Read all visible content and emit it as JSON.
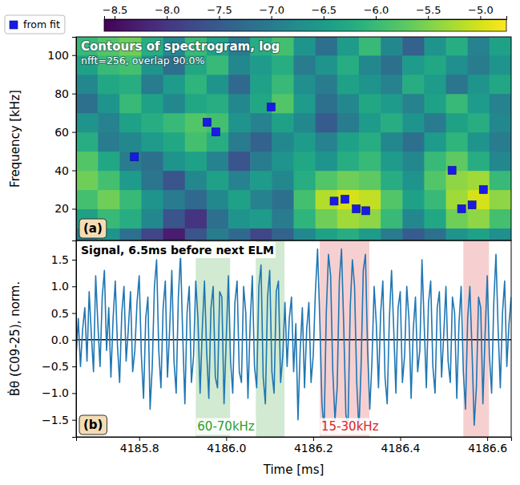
{
  "chart_data": [
    {
      "type": "heatmap",
      "panel_label": "(a)",
      "title": "Contours of spectrogram, log",
      "subtitle": "nfft=256, overlap 90.0%",
      "ylabel": "Frequency [kHz]",
      "xlim": [
        4185.655,
        4186.655
      ],
      "ylim": [
        3.5,
        109.5
      ],
      "yticks": [
        20,
        40,
        60,
        80,
        100
      ],
      "tick_labels": "y",
      "legend": "upper left",
      "heatmap": {
        "x": [
          4185.68,
          4185.73,
          4185.78,
          4185.83,
          4185.88,
          4185.93,
          4185.98,
          4186.03,
          4186.08,
          4186.13,
          4186.18,
          4186.23,
          4186.28,
          4186.33,
          4186.38,
          4186.43,
          4186.48,
          4186.53,
          4186.58,
          4186.63
        ],
        "y": [
          5,
          15,
          25,
          35,
          45,
          55,
          65,
          75,
          85,
          95,
          105
        ],
        "z": [
          [
            -7.0,
            -6.6,
            -7.2,
            -7.8,
            -8.3,
            -7.6,
            -7.0,
            -7.3,
            -7.8,
            -7.4,
            -6.8,
            -6.4,
            -6.2,
            -6.5,
            -7.0,
            -7.5,
            -7.2,
            -6.6,
            -6.4,
            -6.7
          ],
          [
            -6.4,
            -6.0,
            -6.2,
            -6.8,
            -7.6,
            -8.0,
            -7.2,
            -6.6,
            -6.5,
            -7.0,
            -6.1,
            -5.6,
            -5.3,
            -5.4,
            -6.0,
            -6.8,
            -6.3,
            -5.6,
            -5.4,
            -5.9
          ],
          [
            -5.9,
            -5.6,
            -6.0,
            -6.6,
            -7.0,
            -7.3,
            -6.8,
            -6.4,
            -6.9,
            -7.2,
            -5.9,
            -5.2,
            -5.0,
            -5.1,
            -5.8,
            -6.4,
            -6.0,
            -5.3,
            -5.0,
            -5.4
          ],
          [
            -5.6,
            -5.9,
            -6.5,
            -7.1,
            -7.6,
            -6.8,
            -6.4,
            -6.9,
            -6.5,
            -6.8,
            -6.2,
            -5.8,
            -5.6,
            -5.7,
            -6.2,
            -6.6,
            -5.8,
            -5.4,
            -5.3,
            -6.0
          ],
          [
            -5.8,
            -6.3,
            -7.0,
            -7.2,
            -6.6,
            -6.4,
            -6.9,
            -7.6,
            -7.0,
            -6.6,
            -6.3,
            -6.6,
            -6.2,
            -6.0,
            -6.5,
            -6.8,
            -6.0,
            -5.7,
            -6.2,
            -6.8
          ],
          [
            -6.2,
            -7.0,
            -6.8,
            -6.5,
            -6.3,
            -5.9,
            -6.2,
            -7.0,
            -7.4,
            -6.8,
            -6.5,
            -6.9,
            -6.4,
            -6.2,
            -6.8,
            -7.2,
            -6.5,
            -6.1,
            -6.6,
            -7.0
          ],
          [
            -6.6,
            -6.9,
            -6.4,
            -6.2,
            -6.0,
            -5.8,
            -5.9,
            -6.6,
            -6.9,
            -6.4,
            -6.8,
            -7.5,
            -7.0,
            -6.5,
            -6.2,
            -6.6,
            -7.0,
            -6.4,
            -6.2,
            -6.8
          ],
          [
            -7.2,
            -6.6,
            -6.0,
            -6.4,
            -6.8,
            -6.3,
            -6.2,
            -6.8,
            -6.3,
            -5.8,
            -6.5,
            -7.2,
            -6.8,
            -6.3,
            -6.5,
            -6.9,
            -6.4,
            -6.0,
            -6.5,
            -6.9
          ],
          [
            -6.8,
            -6.3,
            -6.2,
            -7.0,
            -6.5,
            -6.1,
            -6.6,
            -7.3,
            -6.4,
            -6.0,
            -6.7,
            -7.0,
            -6.4,
            -6.6,
            -6.9,
            -6.2,
            -6.5,
            -7.1,
            -6.6,
            -6.3
          ],
          [
            -6.4,
            -6.0,
            -5.9,
            -6.6,
            -7.2,
            -6.3,
            -6.0,
            -6.8,
            -6.5,
            -6.2,
            -7.0,
            -6.6,
            -6.2,
            -6.8,
            -7.2,
            -6.5,
            -6.3,
            -6.7,
            -7.0,
            -6.6
          ],
          [
            -6.0,
            -5.8,
            -5.6,
            -6.2,
            -6.8,
            -6.0,
            -6.4,
            -7.0,
            -6.2,
            -5.9,
            -6.6,
            -7.2,
            -6.5,
            -6.0,
            -6.8,
            -7.4,
            -6.6,
            -6.2,
            -6.9,
            -6.4
          ]
        ]
      },
      "clim": [
        -8.6,
        -4.75
      ],
      "cticks": [
        {
          "value": -8.5,
          "label": "−8.5"
        },
        {
          "value": -8.0,
          "label": "−8.0"
        },
        {
          "value": -7.5,
          "label": "−7.5"
        },
        {
          "value": -7.0,
          "label": "−7.0"
        },
        {
          "value": -6.5,
          "label": "−6.5"
        },
        {
          "value": -6.0,
          "label": "−6.0"
        },
        {
          "value": -5.5,
          "label": "−5.5"
        },
        {
          "value": -5.0,
          "label": "−5.0"
        }
      ],
      "series": [
        {
          "name": "from fit",
          "type": "scatter",
          "marker": "square",
          "color": "#1a1ae6",
          "x": [
            4185.789,
            4185.956,
            4185.976,
            4186.103,
            4186.248,
            4186.273,
            4186.299,
            4186.321,
            4186.519,
            4186.541,
            4186.565,
            4186.591
          ],
          "values": [
            47,
            65,
            60,
            73,
            24,
            25,
            20,
            19,
            40,
            20,
            22,
            30
          ]
        }
      ]
    },
    {
      "type": "line",
      "panel_label": "(b)",
      "title": "Signal, 6.5ms before next ELM",
      "xlabel": "Time [ms]",
      "ylabel": "Ḃθ (C09-25), norm.",
      "xlim": [
        4185.655,
        4186.655
      ],
      "ylim": [
        -1.82,
        1.86
      ],
      "xticks": [
        4185.8,
        {
          "value": 4186,
          "label": "4186.0"
        },
        4186.2,
        4186.4,
        4186.6
      ],
      "yticks": [
        {
          "value": -1.5,
          "label": "−1.5"
        },
        {
          "value": -1,
          "label": "−1.0"
        },
        {
          "value": -0.5,
          "label": "−0.5"
        },
        {
          "value": 0,
          "label": "0.0"
        },
        0.5,
        {
          "value": 1,
          "label": "1.0"
        },
        1.5
      ],
      "hline": 0,
      "bands": [
        {
          "label": "60-70kHz",
          "color": "#2ca02c",
          "spans": [
            [
              4185.93,
              4186.009
            ],
            [
              4186.068,
              4186.134
            ]
          ]
        },
        {
          "label": "15-30kHz",
          "color": "#d62728",
          "spans": [
            [
              4186.215,
              4186.329
            ],
            [
              4186.545,
              4186.604
            ]
          ]
        }
      ],
      "x": [
        4185.655,
        4185.66,
        4185.665,
        4185.67,
        4185.675,
        4185.68,
        4185.685,
        4185.69,
        4185.695,
        4185.7,
        4185.705,
        4185.71,
        4185.715,
        4185.72,
        4185.725,
        4185.73,
        4185.735,
        4185.74,
        4185.745,
        4185.75,
        4185.755,
        4185.76,
        4185.765,
        4185.77,
        4185.775,
        4185.78,
        4185.785,
        4185.79,
        4185.795,
        4185.8,
        4185.805,
        4185.81,
        4185.815,
        4185.82,
        4185.825,
        4185.83,
        4185.835,
        4185.84,
        4185.845,
        4185.85,
        4185.855,
        4185.86,
        4185.865,
        4185.87,
        4185.875,
        4185.88,
        4185.885,
        4185.89,
        4185.895,
        4185.9,
        4185.905,
        4185.91,
        4185.915,
        4185.92,
        4185.925,
        4185.93,
        4185.935,
        4185.94,
        4185.945,
        4185.95,
        4185.955,
        4185.96,
        4185.965,
        4185.97,
        4185.975,
        4185.98,
        4185.985,
        4185.99,
        4185.995,
        4186.0,
        4186.005,
        4186.01,
        4186.015,
        4186.02,
        4186.025,
        4186.03,
        4186.035,
        4186.04,
        4186.045,
        4186.05,
        4186.055,
        4186.06,
        4186.065,
        4186.07,
        4186.075,
        4186.08,
        4186.085,
        4186.09,
        4186.095,
        4186.1,
        4186.105,
        4186.11,
        4186.115,
        4186.12,
        4186.125,
        4186.13,
        4186.135,
        4186.14,
        4186.145,
        4186.15,
        4186.155,
        4186.16,
        4186.165,
        4186.17,
        4186.175,
        4186.18,
        4186.185,
        4186.19,
        4186.195,
        4186.2,
        4186.205,
        4186.21,
        4186.215,
        4186.22,
        4186.225,
        4186.23,
        4186.235,
        4186.24,
        4186.245,
        4186.25,
        4186.255,
        4186.26,
        4186.265,
        4186.27,
        4186.275,
        4186.28,
        4186.285,
        4186.29,
        4186.295,
        4186.3,
        4186.305,
        4186.31,
        4186.315,
        4186.32,
        4186.325,
        4186.33,
        4186.335,
        4186.34,
        4186.345,
        4186.35,
        4186.355,
        4186.36,
        4186.365,
        4186.37,
        4186.375,
        4186.38,
        4186.385,
        4186.39,
        4186.395,
        4186.4,
        4186.405,
        4186.41,
        4186.415,
        4186.42,
        4186.425,
        4186.43,
        4186.435,
        4186.44,
        4186.445,
        4186.45,
        4186.455,
        4186.46,
        4186.465,
        4186.47,
        4186.475,
        4186.48,
        4186.485,
        4186.49,
        4186.495,
        4186.5,
        4186.505,
        4186.51,
        4186.515,
        4186.52,
        4186.525,
        4186.53,
        4186.535,
        4186.54,
        4186.545,
        4186.55,
        4186.555,
        4186.56,
        4186.565,
        4186.57,
        4186.575,
        4186.58,
        4186.585,
        4186.59,
        4186.595,
        4186.6,
        4186.605,
        4186.61,
        4186.615,
        4186.62,
        4186.625,
        4186.63,
        4186.635,
        4186.64,
        4186.645,
        4186.65,
        4186.655
      ],
      "series": [
        {
          "color": "#1f77b4",
          "values": [
            -0.3,
            0.4,
            -0.5,
            0.2,
            0.6,
            -0.4,
            0.9,
            0.1,
            -0.6,
            1.2,
            0.3,
            -0.5,
            0.8,
            1.3,
            -0.2,
            0.6,
            -0.7,
            0.4,
            1.1,
            -0.1,
            -0.8,
            0.5,
            1.0,
            -0.4,
            0.2,
            0.9,
            -0.6,
            -0.2,
            0.7,
            1.2,
            -0.3,
            -1.1,
            0.4,
            0.8,
            -1.3,
            -0.5,
            1.0,
            1.5,
            -0.2,
            -0.9,
            0.6,
            1.1,
            -0.7,
            0.2,
            1.3,
            -0.4,
            -1.0,
            0.8,
            1.6,
            0.1,
            -1.2,
            0.5,
            1.0,
            -0.8,
            -0.3,
            1.1,
            0.4,
            -1.0,
            0.2,
            1.1,
            -0.2,
            -1.1,
            0.6,
            1.0,
            -0.7,
            -0.9,
            0.9,
            0.8,
            -1.2,
            0.0,
            1.2,
            -0.4,
            -1.0,
            0.7,
            1.1,
            -0.6,
            -0.8,
            1.0,
            0.5,
            -1.1,
            0.3,
            1.2,
            -0.5,
            -0.9,
            1.0,
            1.4,
            -0.7,
            -1.2,
            0.8,
            1.3,
            -0.6,
            -1.0,
            0.9,
            1.1,
            -0.8,
            -0.3,
            0.7,
            -0.5,
            0.4,
            0.8,
            -0.6,
            0.3,
            -1.5,
            -0.2,
            0.6,
            -0.9,
            0.2,
            0.7,
            -0.8,
            -0.3,
            0.9,
            1.7,
            0.4,
            -1.2,
            -1.7,
            0.5,
            1.6,
            1.2,
            -0.6,
            -1.5,
            -0.9,
            1.1,
            1.7,
            0.3,
            -1.4,
            -1.6,
            0.6,
            1.5,
            1.0,
            -0.8,
            -1.7,
            -0.5,
            1.3,
            1.6,
            -0.2,
            -1.3,
            -0.4,
            1.0,
            0.3,
            -0.9,
            0.5,
            1.1,
            -0.7,
            -1.2,
            0.4,
            1.3,
            0.2,
            -1.0,
            0.6,
            0.9,
            -0.8,
            -0.3,
            1.0,
            0.4,
            -1.1,
            0.2,
            0.8,
            -0.6,
            -0.2,
            1.5,
            0.3,
            -0.9,
            0.7,
            1.1,
            -0.5,
            -1.0,
            0.6,
            0.9,
            -0.7,
            0.1,
            1.0,
            -0.4,
            -0.8,
            0.8,
            0.5,
            -1.1,
            0.3,
            1.0,
            -0.6,
            -1.3,
            0.4,
            1.0,
            -0.2,
            -1.6,
            -0.9,
            0.8,
            0.6,
            -1.2,
            0.1,
            1.2,
            -0.3,
            -1.0,
            0.7,
            1.6,
            0.2,
            -0.9,
            0.5,
            1.1,
            -0.5,
            0.3,
            0.8
          ]
        }
      ]
    }
  ]
}
